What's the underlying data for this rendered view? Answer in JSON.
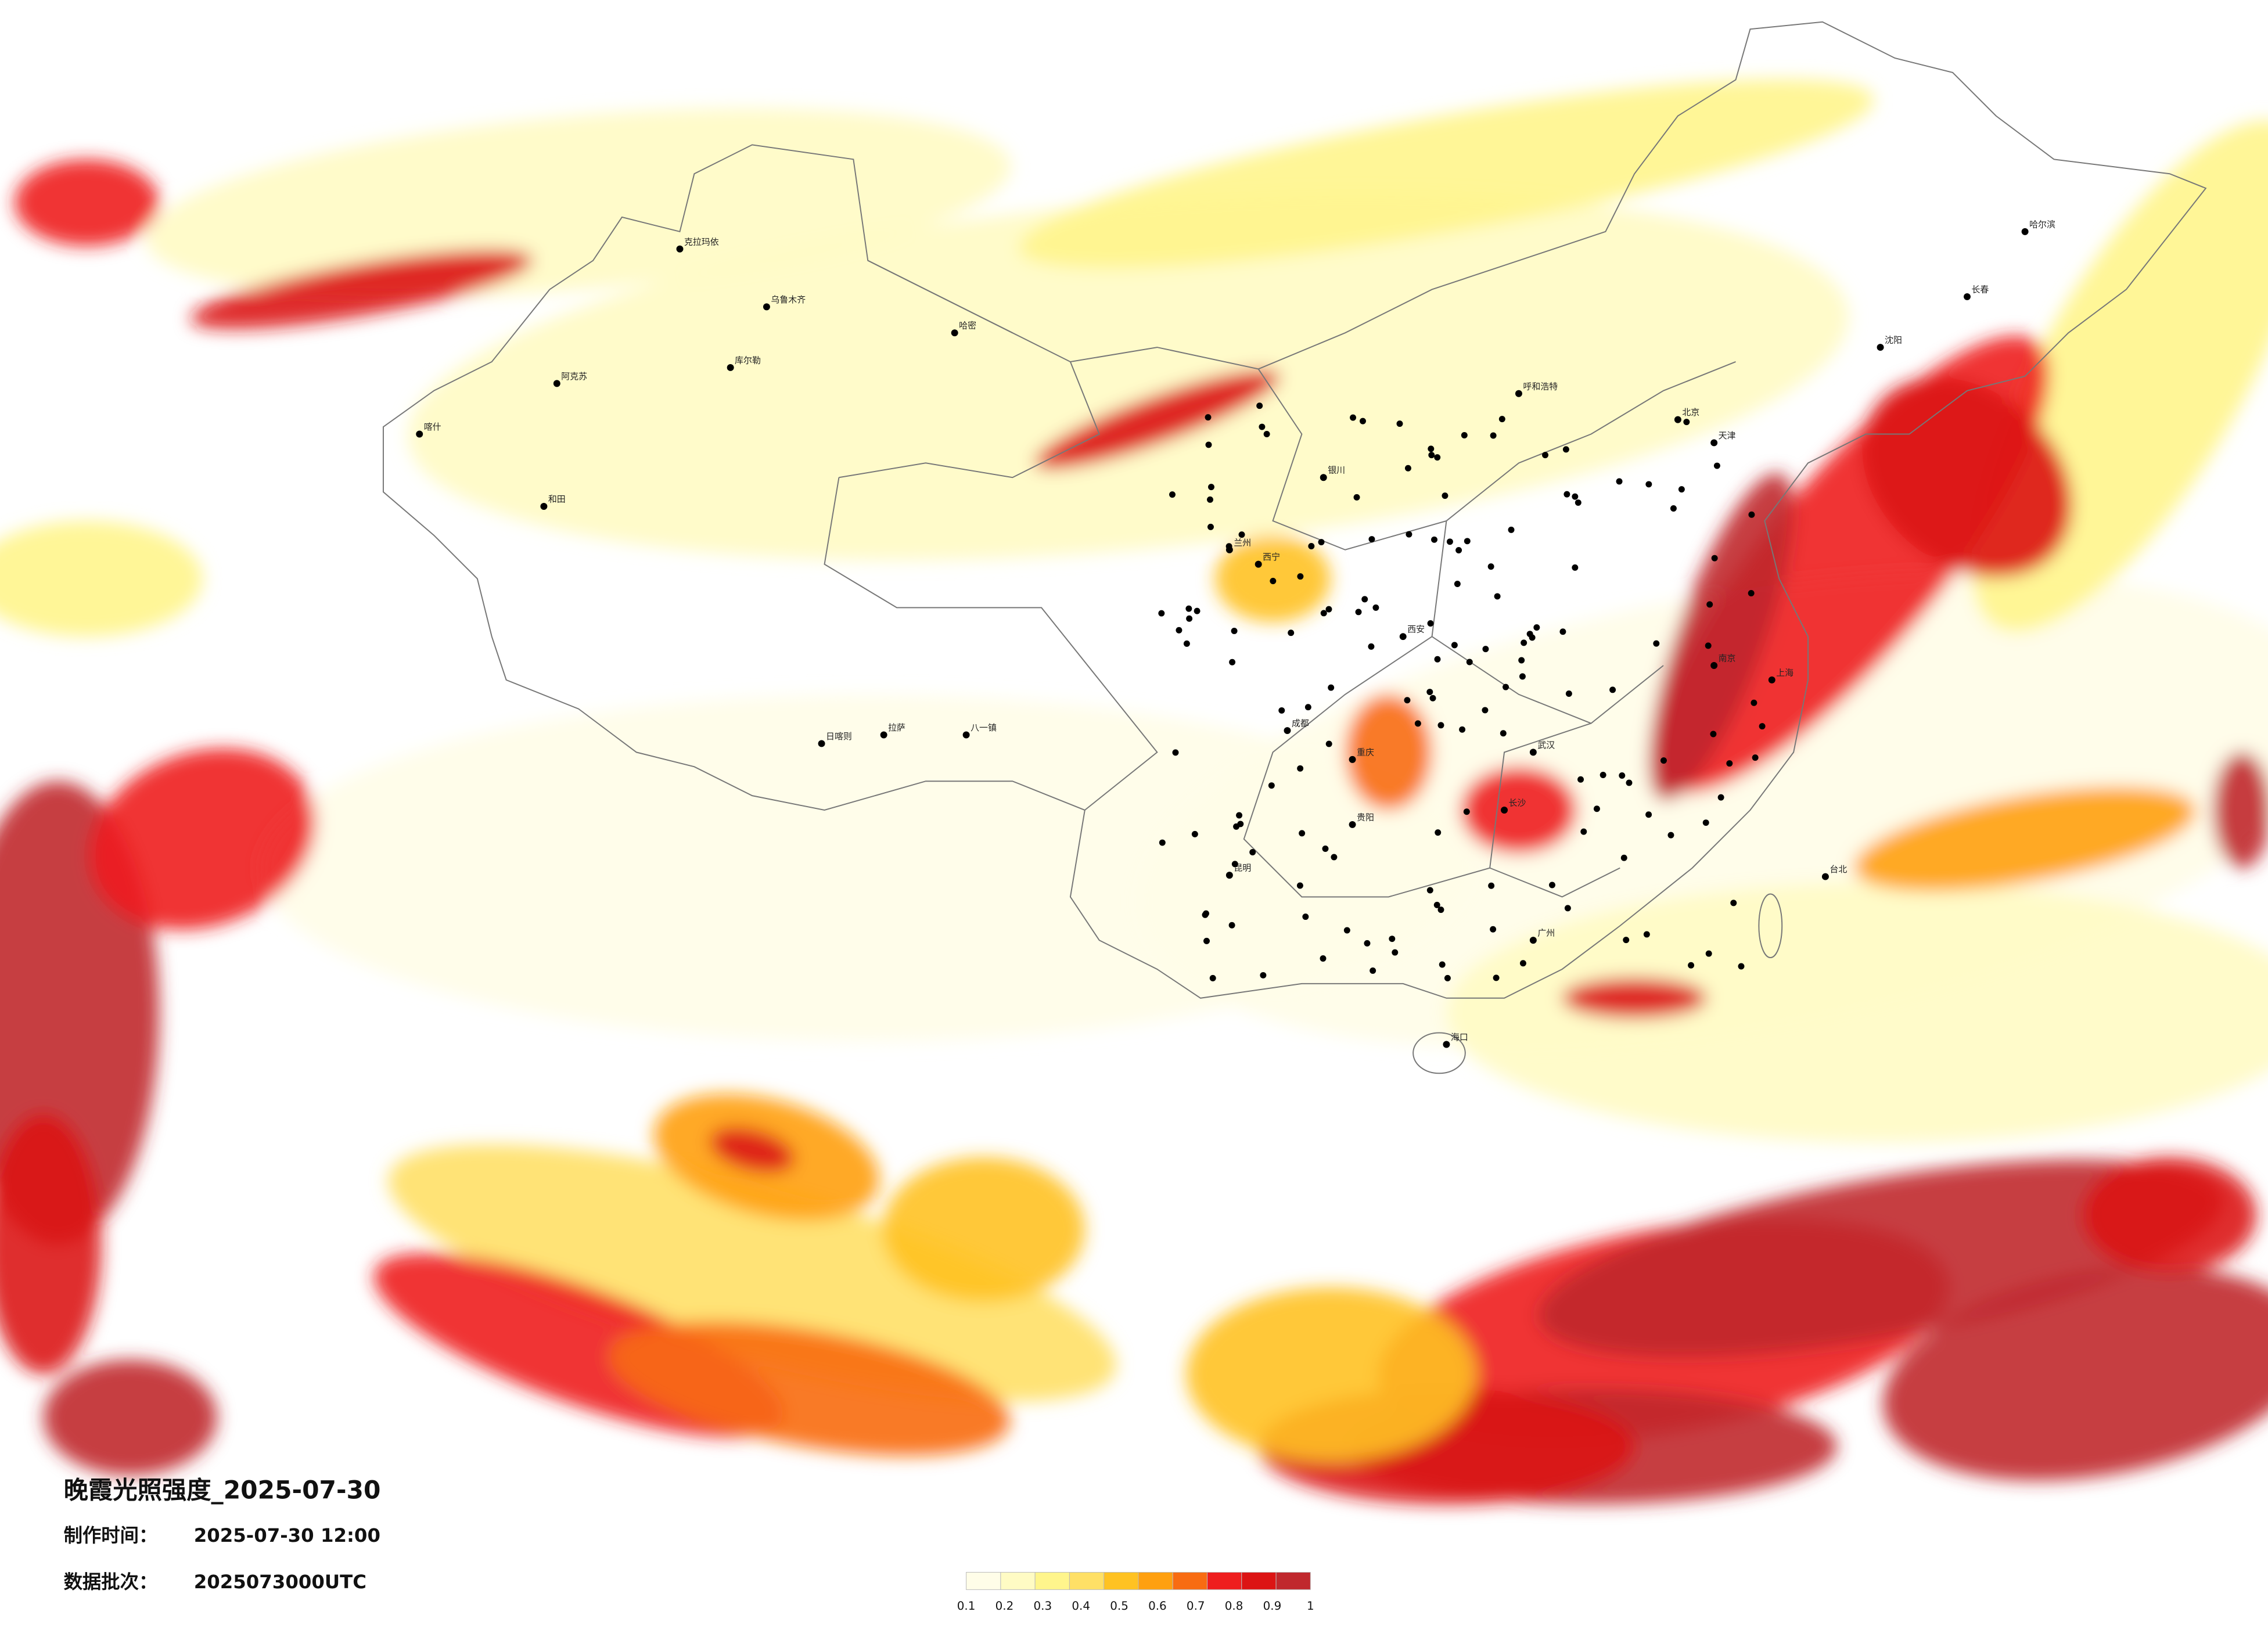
{
  "header": {
    "title": "晚霞光照强度_2025-07-30",
    "made_label": "制作时间：",
    "made_value": "2025-07-30 12:00",
    "batch_label": "数据批次：",
    "batch_value": "2025073000UTC"
  },
  "legend": {
    "ticks": [
      0.1,
      0.2,
      0.3,
      0.4,
      0.5,
      0.6,
      0.7,
      0.8,
      0.9,
      1
    ],
    "colors": [
      "#fffde8",
      "#fffbc4",
      "#fff58c",
      "#ffe066",
      "#ffc222",
      "#ffa010",
      "#f86c12",
      "#ee1e1e",
      "#dc1414",
      "#c0282d"
    ]
  },
  "cities": [
    "喀什",
    "和田",
    "阿克苏",
    "库尔勒",
    "乌鲁木齐",
    "哈密",
    "克拉玛依",
    "拉萨",
    "日喀则",
    "八一镇",
    "西宁",
    "兰州",
    "银川",
    "呼和浩特",
    "北京",
    "天津",
    "沈阳",
    "长春",
    "哈尔滨",
    "西安",
    "成都",
    "重庆",
    "贵阳",
    "昆明",
    "武汉",
    "长沙",
    "南京",
    "上海",
    "广州",
    "海口",
    "台北"
  ]
}
